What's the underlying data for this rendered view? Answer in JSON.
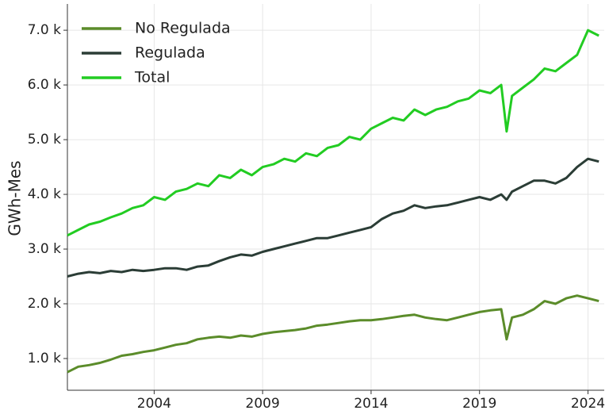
{
  "chart_data": {
    "type": "line",
    "ylabel": "GWh-Mes",
    "x": [
      2000,
      2000.5,
      2001,
      2001.5,
      2002,
      2002.5,
      2003,
      2003.5,
      2004,
      2004.5,
      2005,
      2005.5,
      2006,
      2006.5,
      2007,
      2007.5,
      2008,
      2008.5,
      2009,
      2009.5,
      2010,
      2010.5,
      2011,
      2011.5,
      2012,
      2012.5,
      2013,
      2013.5,
      2014,
      2014.5,
      2015,
      2015.5,
      2016,
      2016.5,
      2017,
      2017.5,
      2018,
      2018.5,
      2019,
      2019.5,
      2020,
      2020.25,
      2020.5,
      2021,
      2021.5,
      2022,
      2022.5,
      2023,
      2023.5,
      2024,
      2024.5
    ],
    "series": [
      {
        "name": "No Regulada",
        "color": "#5b8c2a",
        "values": [
          750,
          850,
          880,
          920,
          980,
          1050,
          1080,
          1120,
          1150,
          1200,
          1250,
          1280,
          1350,
          1380,
          1400,
          1380,
          1420,
          1400,
          1450,
          1480,
          1500,
          1520,
          1550,
          1600,
          1620,
          1650,
          1680,
          1700,
          1700,
          1720,
          1750,
          1780,
          1800,
          1750,
          1720,
          1700,
          1750,
          1800,
          1850,
          1880,
          1900,
          1350,
          1750,
          1800,
          1900,
          2050,
          2000,
          2100,
          2150,
          2100,
          2050
        ]
      },
      {
        "name": "Regulada",
        "color": "#2b3d36",
        "values": [
          2500,
          2550,
          2580,
          2560,
          2600,
          2580,
          2620,
          2600,
          2620,
          2650,
          2650,
          2620,
          2680,
          2700,
          2780,
          2850,
          2900,
          2880,
          2950,
          3000,
          3050,
          3100,
          3150,
          3200,
          3200,
          3250,
          3300,
          3350,
          3400,
          3550,
          3650,
          3700,
          3800,
          3750,
          3780,
          3800,
          3850,
          3900,
          3950,
          3900,
          4000,
          3900,
          4050,
          4150,
          4250,
          4250,
          4200,
          4300,
          4500,
          4650,
          4600
        ]
      },
      {
        "name": "Total",
        "color": "#22cc22",
        "values": [
          3250,
          3350,
          3450,
          3500,
          3580,
          3650,
          3750,
          3800,
          3950,
          3900,
          4050,
          4100,
          4200,
          4150,
          4350,
          4300,
          4450,
          4350,
          4500,
          4550,
          4650,
          4600,
          4750,
          4700,
          4850,
          4900,
          5050,
          5000,
          5200,
          5300,
          5400,
          5350,
          5550,
          5450,
          5550,
          5600,
          5700,
          5750,
          5900,
          5850,
          6000,
          5150,
          5800,
          5950,
          6100,
          6300,
          6250,
          6400,
          6550,
          7000,
          6900
        ]
      }
    ],
    "xlim": [
      2000,
      2024.75
    ],
    "ylim": [
      420,
      7480
    ],
    "xticks": [
      2004,
      2009,
      2014,
      2019,
      2024
    ],
    "yticks": [
      {
        "value": 1000,
        "label": "1.0 k"
      },
      {
        "value": 2000,
        "label": "2.0 k"
      },
      {
        "value": 3000,
        "label": "3.0 k"
      },
      {
        "value": 4000,
        "label": "4.0 k"
      },
      {
        "value": 5000,
        "label": "5.0 k"
      },
      {
        "value": 6000,
        "label": "6.0 k"
      },
      {
        "value": 7000,
        "label": "7.0 k"
      }
    ],
    "grid": true,
    "legend": "upper-left"
  }
}
